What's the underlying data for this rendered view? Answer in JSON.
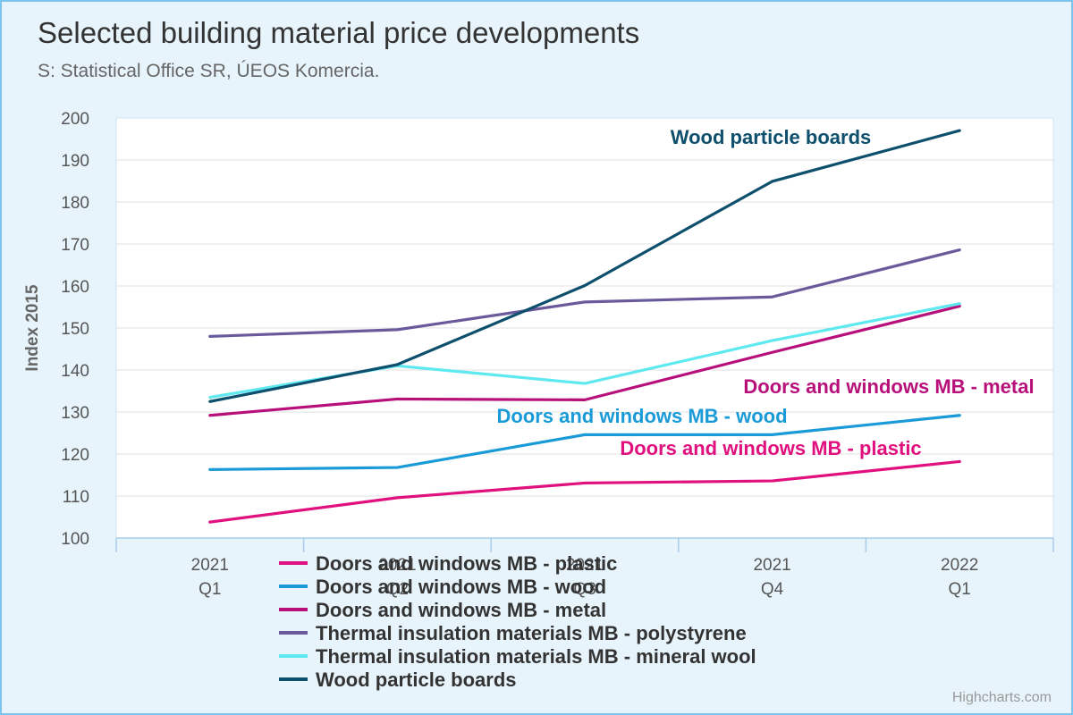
{
  "chart_data": {
    "type": "line",
    "title": "Selected building material price developments",
    "subtitle": "S: Statistical Office SR, ÚEOS Komercia.",
    "ylabel": "Index 2015",
    "xlabel": "",
    "ylim": [
      100,
      200
    ],
    "yticks": [
      100,
      110,
      120,
      130,
      140,
      150,
      160,
      170,
      180,
      190,
      200
    ],
    "categories": [
      [
        "2021",
        "Q1"
      ],
      [
        "2021",
        "Q2"
      ],
      [
        "2021",
        "Q3"
      ],
      [
        "2021",
        "Q4"
      ],
      [
        "2022",
        "Q1"
      ]
    ],
    "grid": true,
    "legend_position": "bottom",
    "credits": "Highcharts.com",
    "series": [
      {
        "name": "Doors and windows MB - plastic",
        "color": "#e0117f",
        "values": [
          103.8,
          109.6,
          113.1,
          113.6,
          118.2
        ],
        "annotation": "Doors and windows MB - plastic"
      },
      {
        "name": "Doors and windows MB - wood",
        "color": "#1a9bd7",
        "values": [
          116.3,
          116.8,
          124.6,
          124.6,
          129.2
        ],
        "annotation": "Doors and windows MB - wood"
      },
      {
        "name": "Doors and windows MB - metal",
        "color": "#b8107b",
        "values": [
          129.2,
          133.1,
          132.9,
          144.2,
          155.2
        ],
        "annotation": "Doors and windows MB - metal"
      },
      {
        "name": "Thermal insulation materials MB - polystyrene",
        "color": "#6a5a9c",
        "values": [
          148.0,
          149.6,
          156.2,
          157.4,
          168.6
        ],
        "annotation": ""
      },
      {
        "name": "Thermal insulation materials MB - mineral wool",
        "color": "#5ee8f0",
        "values": [
          133.5,
          141.0,
          136.8,
          147.0,
          155.8
        ],
        "annotation": ""
      },
      {
        "name": "Wood particle boards",
        "color": "#0d4f6c",
        "values": [
          132.5,
          141.3,
          160.1,
          184.9,
          197.0
        ],
        "annotation": "Wood particle boards"
      }
    ]
  }
}
